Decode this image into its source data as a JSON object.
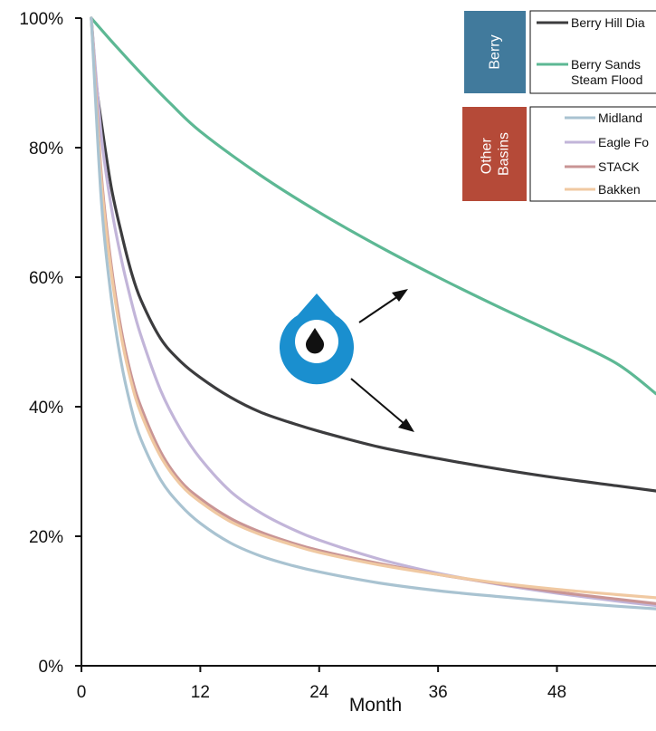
{
  "chart_data": {
    "type": "line",
    "title": "",
    "xlabel": "Month",
    "ylabel": "",
    "xlim": [
      0,
      58
    ],
    "ylim": [
      0,
      100
    ],
    "x_ticks": [
      0,
      12,
      24,
      36,
      48
    ],
    "x_tick_labels": [
      "0",
      "12",
      "24",
      "36",
      "48"
    ],
    "y_ticks": [
      0,
      20,
      40,
      60,
      80,
      100
    ],
    "y_tick_labels": [
      "0%",
      "20%",
      "40%",
      "60%",
      "80%",
      "100%"
    ],
    "grid": false,
    "legend_position": "top-right",
    "legend_groups": [
      {
        "label": "Berry",
        "color": "#417a9c",
        "members": [
          "Berry Hill Diatomite",
          "Berry Sandstone Steam Flood"
        ]
      },
      {
        "label": "Other Basins",
        "color": "#b54a38",
        "members": [
          "Midland",
          "Eagle Ford",
          "STACK",
          "Bakken"
        ]
      }
    ],
    "legend_labels": {
      "Berry Hill Diatomite": "Berry Hill Dia",
      "Berry Sandstone Steam Flood": [
        "Berry Sands",
        "Steam Flood"
      ],
      "Midland": "Midland",
      "Eagle Ford": "Eagle Fo",
      "STACK": "STACK",
      "Bakken": "Bakken"
    },
    "series": [
      {
        "name": "Berry Sandstone Steam Flood",
        "color": "#5db894",
        "x": [
          1,
          3,
          6,
          9,
          12,
          18,
          24,
          30,
          36,
          42,
          48,
          54,
          58
        ],
        "y": [
          100,
          96.5,
          91.5,
          86.8,
          82.5,
          75.8,
          70.0,
          64.8,
          60.0,
          55.5,
          51.2,
          46.7,
          42.0
        ]
      },
      {
        "name": "Berry Hill Diatomite",
        "color": "#3c3c3e",
        "x": [
          1,
          1.5,
          2,
          3,
          4,
          5,
          6,
          8,
          10,
          12,
          15,
          18,
          21,
          24,
          30,
          36,
          42,
          48,
          54,
          58
        ],
        "y": [
          100,
          90.0,
          84.0,
          74.0,
          67.0,
          61.0,
          56.5,
          50.5,
          47.0,
          44.5,
          41.5,
          39.2,
          37.6,
          36.2,
          33.8,
          32.0,
          30.4,
          29.0,
          27.8,
          27.0
        ]
      },
      {
        "name": "Eagle Ford",
        "color": "#c2b5d9",
        "x": [
          1,
          2,
          3,
          4,
          5,
          6,
          8,
          10,
          12,
          15,
          18,
          21,
          24,
          30,
          36,
          42,
          48,
          54,
          58
        ],
        "y": [
          100,
          82.0,
          71.0,
          63.0,
          56.5,
          51.0,
          42.5,
          36.5,
          32.0,
          27.0,
          23.7,
          21.3,
          19.4,
          16.5,
          14.3,
          12.6,
          11.2,
          10.0,
          9.3
        ]
      },
      {
        "name": "STACK",
        "color": "#c99595",
        "x": [
          1,
          2,
          3,
          4,
          5,
          6,
          8,
          10,
          12,
          15,
          18,
          21,
          24,
          30,
          36,
          42,
          48,
          54,
          58
        ],
        "y": [
          100,
          76.0,
          62.0,
          52.0,
          45.0,
          40.0,
          33.0,
          28.5,
          25.8,
          22.8,
          20.7,
          19.1,
          17.8,
          15.8,
          14.1,
          12.7,
          11.4,
          10.3,
          9.6
        ]
      },
      {
        "name": "Bakken",
        "color": "#f0c9a2",
        "x": [
          1,
          2,
          3,
          4,
          5,
          6,
          8,
          10,
          12,
          15,
          18,
          21,
          24,
          30,
          36,
          42,
          48,
          54,
          58
        ],
        "y": [
          100,
          75.0,
          61.0,
          51.0,
          44.0,
          39.0,
          32.3,
          28.0,
          25.3,
          22.3,
          20.3,
          18.8,
          17.5,
          15.6,
          14.1,
          12.8,
          11.8,
          11.0,
          10.5
        ]
      },
      {
        "name": "Midland",
        "color": "#a9c3d1",
        "x": [
          1,
          2,
          3,
          4,
          5,
          6,
          8,
          10,
          12,
          15,
          18,
          21,
          24,
          30,
          36,
          42,
          48,
          54,
          58
        ],
        "y": [
          100,
          72.0,
          57.0,
          47.0,
          40.0,
          35.0,
          28.7,
          24.8,
          22.0,
          19.0,
          17.0,
          15.6,
          14.5,
          12.8,
          11.6,
          10.7,
          9.9,
          9.2,
          8.8
        ]
      }
    ]
  },
  "logo": {
    "name": "berry-drop-logo"
  }
}
